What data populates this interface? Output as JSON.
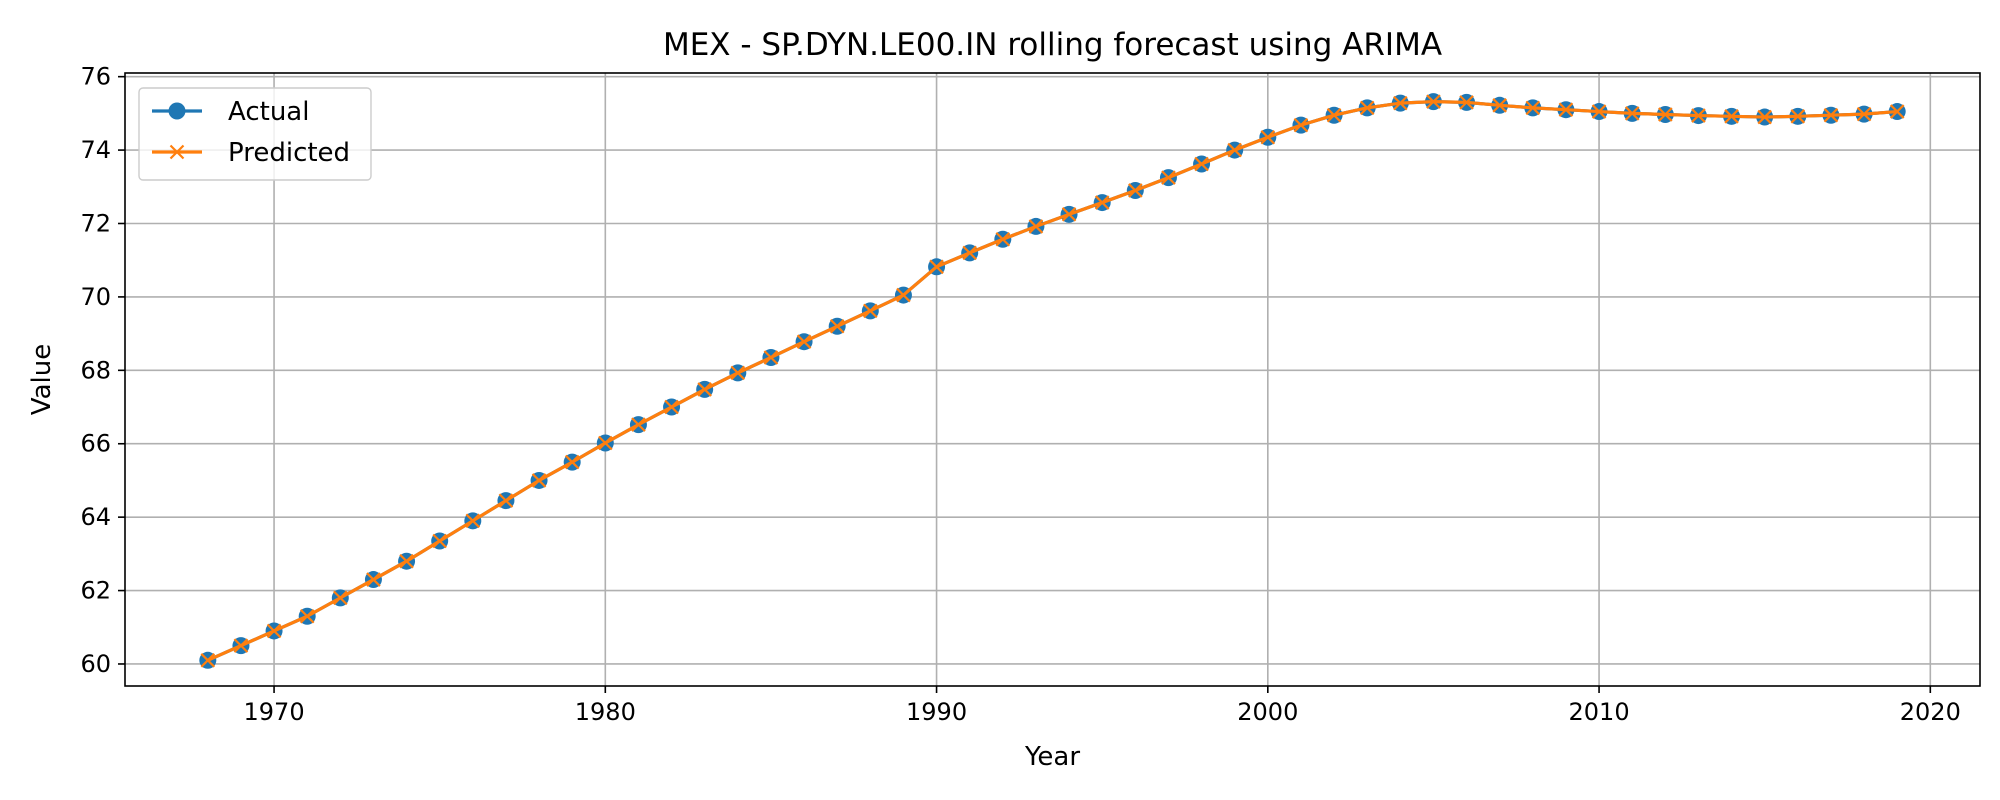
{
  "chart_data": {
    "type": "line",
    "title": "MEX - SP.DYN.LE00.IN rolling forecast using ARIMA",
    "xlabel": "Year",
    "ylabel": "Value",
    "xlim": [
      1965.5,
      2021.5
    ],
    "ylim": [
      59.4,
      76.1
    ],
    "x_ticks": [
      1970,
      1980,
      1990,
      2000,
      2010,
      2020
    ],
    "y_ticks": [
      60,
      62,
      64,
      66,
      68,
      70,
      72,
      74,
      76
    ],
    "grid": true,
    "legend_position": "upper-left",
    "x": [
      1968,
      1969,
      1970,
      1971,
      1972,
      1973,
      1974,
      1975,
      1976,
      1977,
      1978,
      1979,
      1980,
      1981,
      1982,
      1983,
      1984,
      1985,
      1986,
      1987,
      1988,
      1989,
      1990,
      1991,
      1992,
      1993,
      1994,
      1995,
      1996,
      1997,
      1998,
      1999,
      2000,
      2001,
      2002,
      2003,
      2004,
      2005,
      2006,
      2007,
      2008,
      2009,
      2010,
      2011,
      2012,
      2013,
      2014,
      2015,
      2016,
      2017,
      2018,
      2019
    ],
    "series": [
      {
        "name": "Actual",
        "color": "#1f77b4",
        "marker": "circle",
        "values": [
          60.1,
          60.5,
          60.9,
          61.3,
          61.8,
          62.3,
          62.8,
          63.35,
          63.9,
          64.45,
          65.0,
          65.5,
          66.02,
          66.52,
          67.0,
          67.48,
          67.93,
          68.35,
          68.78,
          69.2,
          69.62,
          70.05,
          70.82,
          71.2,
          71.57,
          71.92,
          72.25,
          72.57,
          72.9,
          73.25,
          73.62,
          74.0,
          74.35,
          74.68,
          74.95,
          75.15,
          75.28,
          75.32,
          75.3,
          75.22,
          75.15,
          75.1,
          75.05,
          75.0,
          74.97,
          74.94,
          74.92,
          74.9,
          74.92,
          74.95,
          74.98,
          75.05
        ]
      },
      {
        "name": "Predicted",
        "color": "#ff7f0e",
        "marker": "x",
        "values": [
          60.1,
          60.5,
          60.9,
          61.3,
          61.8,
          62.3,
          62.8,
          63.35,
          63.9,
          64.45,
          65.0,
          65.5,
          66.02,
          66.52,
          67.0,
          67.48,
          67.93,
          68.35,
          68.78,
          69.2,
          69.62,
          70.05,
          70.82,
          71.2,
          71.57,
          71.92,
          72.25,
          72.57,
          72.9,
          73.25,
          73.62,
          74.0,
          74.35,
          74.68,
          74.95,
          75.15,
          75.28,
          75.32,
          75.3,
          75.22,
          75.15,
          75.1,
          75.05,
          75.0,
          74.97,
          74.94,
          74.92,
          74.9,
          74.92,
          74.95,
          74.98,
          75.05
        ]
      }
    ]
  }
}
